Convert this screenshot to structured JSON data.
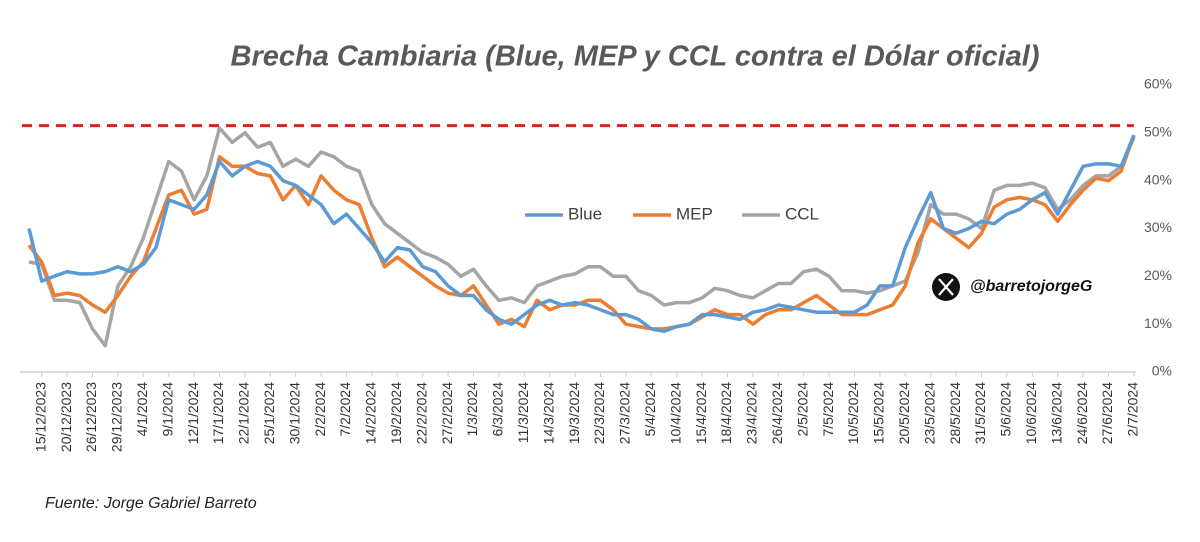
{
  "chart_data": {
    "type": "line",
    "title": "Brecha Cambiaria (Blue, MEP y CCL contra el Dólar oficial)",
    "source": "Fuente: Jorge Gabriel Barreto",
    "watermark": "@barretojorgeG",
    "categories": [
      null,
      "15/12/2023",
      null,
      "20/12/2023",
      null,
      "26/12/2023",
      null,
      "29/12/2023",
      null,
      "4/1/2024",
      null,
      "9/1/2024",
      null,
      "12/1/2024",
      null,
      "17/1/2024",
      null,
      "22/1/2024",
      null,
      "25/1/2024",
      null,
      "30/1/2024",
      null,
      "2/2/2024",
      null,
      "7/2/2024",
      null,
      "14/2/2024",
      null,
      "19/2/2024",
      null,
      "22/2/2024",
      null,
      "27/2/2024",
      null,
      "1/3/2024",
      null,
      "6/3/2024",
      null,
      "11/3/2024",
      null,
      "14/3/2024",
      null,
      "19/3/2024",
      null,
      "22/3/2024",
      null,
      "27/3/2024",
      null,
      "5/4/2024",
      null,
      "10/4/2024",
      null,
      "15/4/2024",
      null,
      "18/4/2024",
      null,
      "23/4/2024",
      null,
      "26/4/2024",
      null,
      "2/5/2024",
      null,
      "7/5/2024",
      null,
      "10/5/2024",
      null,
      "15/5/2024",
      null,
      "20/5/2024",
      null,
      "23/5/2024",
      null,
      "28/5/2024",
      null,
      "31/5/2024",
      null,
      "5/6/2024",
      null,
      "10/6/2024",
      null,
      "13/6/2024",
      null,
      "24/6/2024",
      null,
      "27/6/2024",
      null,
      "2/7/2024"
    ],
    "series": [
      {
        "name": "Blue",
        "color": "#5b9bd5",
        "values": [
          30,
          19,
          20,
          21,
          20.5,
          20.5,
          21,
          22,
          21,
          22.5,
          26,
          36,
          35,
          34,
          37,
          44,
          41,
          43,
          44,
          43,
          40,
          39,
          37,
          35,
          31,
          33,
          30,
          27,
          23,
          26,
          25.5,
          22,
          21,
          18,
          16,
          16,
          13,
          11,
          10,
          12,
          14,
          15,
          14,
          14.5,
          14,
          13,
          12,
          12,
          11,
          9,
          8.5,
          9.5,
          10,
          12,
          12,
          11.5,
          11,
          12.5,
          13,
          14,
          13.5,
          13,
          12.5,
          12.5,
          12.5,
          12.5,
          14,
          18,
          18,
          26,
          32,
          37.5,
          30,
          29,
          30,
          31.5,
          31,
          33,
          34,
          36,
          37.5,
          33,
          38,
          43,
          43.5,
          43.5,
          43,
          49.5
        ]
      },
      {
        "name": "MEP",
        "color": "#ed7d31",
        "values": [
          26.5,
          23,
          16,
          16.5,
          16,
          14,
          12.5,
          16,
          20,
          23,
          30,
          37,
          38,
          33,
          34,
          45,
          43,
          43,
          41.5,
          41,
          36,
          39,
          35,
          41,
          38,
          36,
          35,
          28,
          22,
          24,
          22,
          20,
          18,
          16.5,
          16,
          18,
          14,
          10,
          11,
          9.5,
          15,
          13,
          14,
          14,
          15,
          15,
          13,
          10,
          9.5,
          9,
          9,
          9.5,
          10,
          11.5,
          13,
          12,
          12,
          10,
          12,
          13,
          13,
          14.5,
          16,
          14,
          12,
          12,
          12,
          13,
          14,
          18,
          27,
          32,
          30,
          28,
          26,
          29,
          34.5,
          36,
          36.5,
          36,
          35,
          31.5,
          35,
          38,
          40.5,
          40,
          42,
          49.5
        ]
      },
      {
        "name": "CCL",
        "color": "#a5a5a5",
        "values": [
          23,
          22.5,
          15,
          15,
          14.5,
          9,
          5.5,
          18,
          22,
          28,
          36,
          44,
          42,
          36,
          41,
          51,
          48,
          50,
          47,
          48,
          43,
          44.5,
          43,
          46,
          45,
          43,
          42,
          35,
          31,
          29,
          27,
          25,
          24,
          22.5,
          20,
          21.5,
          18,
          15,
          15.5,
          14.5,
          18,
          19,
          20,
          20.5,
          22,
          22,
          20,
          20,
          17,
          16,
          14,
          14.5,
          14.5,
          15.5,
          17.5,
          17,
          16,
          15.5,
          17,
          18.5,
          18.5,
          21,
          21.5,
          20,
          17,
          17,
          16.5,
          17,
          18,
          19,
          25,
          35,
          33,
          33,
          32,
          30,
          38,
          39,
          39,
          39.5,
          38.5,
          34,
          36,
          39,
          41,
          41,
          43,
          49
        ]
      }
    ],
    "reference_line": {
      "value": 51.5,
      "color": "#e02020"
    },
    "ylim": [
      0,
      60
    ],
    "yticks": [
      {
        "value": 0,
        "label": "0%"
      },
      {
        "value": 10,
        "label": "10%"
      },
      {
        "value": 20,
        "label": "20%"
      },
      {
        "value": 30,
        "label": "30%"
      },
      {
        "value": 40,
        "label": "40%"
      },
      {
        "value": 50,
        "label": "50%"
      },
      {
        "value": 60,
        "label": "60%"
      }
    ],
    "grid": false,
    "legend": "center"
  }
}
